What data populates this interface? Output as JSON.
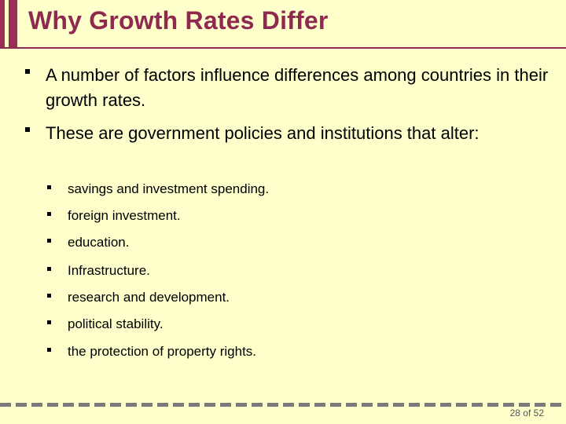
{
  "slide": {
    "title": "Why Growth Rates Differ",
    "bullets": [
      {
        "text": "A number of factors influence differences among countries in their growth rates."
      },
      {
        "text": "These are government policies and institutions that alter:"
      }
    ],
    "sub_bullets": [
      "savings and investment spending.",
      "foreign investment.",
      "education.",
      "Infrastructure.",
      "research and development.",
      "political stability.",
      "the protection of property rights."
    ],
    "page_number": "28 of 52",
    "colors": {
      "background": "#ffffcc",
      "title": "#8e2a4f",
      "accent": "#9c2f57"
    }
  }
}
